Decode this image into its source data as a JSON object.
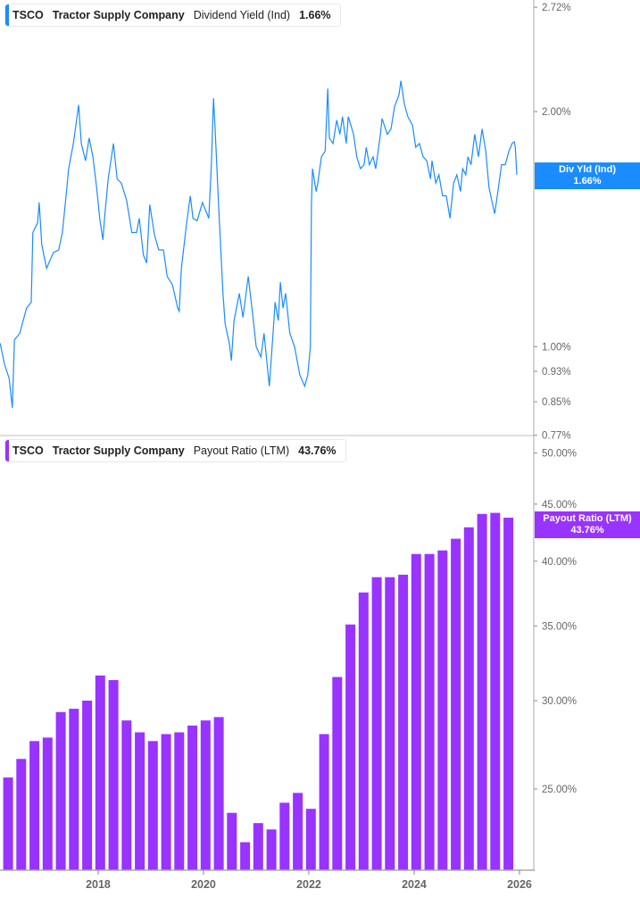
{
  "colors": {
    "yield": "#1a8cff",
    "payout": "#9933ff",
    "axis": "#999999",
    "label": "#666666"
  },
  "top_legend": {
    "ticker": "TSCO",
    "company": "Tractor Supply Company",
    "metric": "Dividend Yield (Ind)",
    "value": "1.66%"
  },
  "top_value_label": {
    "name": "Div Yld (Ind)",
    "value": "1.66%"
  },
  "bottom_legend": {
    "ticker": "TSCO",
    "company": "Tractor Supply Company",
    "metric": "Payout Ratio (LTM)",
    "value": "43.76%"
  },
  "bottom_value_label": {
    "name": "Payout Ratio (LTM)",
    "value": "43.76%"
  },
  "chart_data": [
    {
      "type": "line",
      "series": [
        {
          "name": "Dividend Yield (Ind)",
          "color": "#1a8cff"
        }
      ],
      "y_scale": "log",
      "y_ticks": [
        2.72,
        2.0,
        1.0,
        0.93,
        0.85,
        0.77
      ],
      "y_tick_labels": [
        "2.72%",
        "2.00%",
        "1.00%",
        "0.93%",
        "0.85%",
        "0.77%"
      ],
      "y_axis_position": "right",
      "x": [
        2016.14,
        2016.22,
        2016.31,
        2016.37,
        2016.41,
        2016.51,
        2016.64,
        2016.73,
        2016.76,
        2016.85,
        2016.88,
        2016.93,
        2017.02,
        2017.15,
        2017.25,
        2017.32,
        2017.39,
        2017.44,
        2017.53,
        2017.59,
        2017.63,
        2017.68,
        2017.76,
        2017.83,
        2017.9,
        2017.97,
        2018.03,
        2018.09,
        2018.12,
        2018.19,
        2018.29,
        2018.36,
        2018.44,
        2018.54,
        2018.64,
        2018.73,
        2018.78,
        2018.86,
        2018.92,
        2018.98,
        2019.07,
        2019.15,
        2019.24,
        2019.31,
        2019.41,
        2019.51,
        2019.54,
        2019.58,
        2019.68,
        2019.75,
        2019.8,
        2019.88,
        2019.98,
        2020.1,
        2020.15,
        2020.19,
        2020.22,
        2020.29,
        2020.37,
        2020.41,
        2020.49,
        2020.53,
        2020.58,
        2020.68,
        2020.75,
        2020.85,
        2020.92,
        2021.0,
        2021.09,
        2021.15,
        2021.25,
        2021.32,
        2021.36,
        2021.42,
        2021.46,
        2021.51,
        2021.56,
        2021.64,
        2021.73,
        2021.83,
        2021.92,
        2021.98,
        2022.03,
        2022.05,
        2022.07,
        2022.14,
        2022.17,
        2022.24,
        2022.31,
        2022.36,
        2022.39,
        2022.46,
        2022.53,
        2022.59,
        2022.64,
        2022.71,
        2022.75,
        2022.85,
        2022.91,
        2022.98,
        2023.05,
        2023.09,
        2023.15,
        2023.22,
        2023.27,
        2023.36,
        2023.39,
        2023.49,
        2023.56,
        2023.63,
        2023.71,
        2023.75,
        2023.81,
        2023.88,
        2023.97,
        2024.03,
        2024.1,
        2024.17,
        2024.24,
        2024.31,
        2024.34,
        2024.41,
        2024.47,
        2024.54,
        2024.61,
        2024.68,
        2024.75,
        2024.81,
        2024.88,
        2024.92,
        2024.98,
        2025.02,
        2025.08,
        2025.15,
        2025.22,
        2025.29,
        2025.36,
        2025.42,
        2025.49,
        2025.53,
        2025.59,
        2025.66,
        2025.73,
        2025.8,
        2025.86,
        2025.9,
        2025.92,
        2025.95
      ],
      "y": [
        1.01,
        0.95,
        0.91,
        0.835,
        1.02,
        1.04,
        1.12,
        1.14,
        1.4,
        1.44,
        1.53,
        1.35,
        1.26,
        1.32,
        1.33,
        1.4,
        1.56,
        1.69,
        1.82,
        1.95,
        2.04,
        1.82,
        1.73,
        1.85,
        1.75,
        1.6,
        1.46,
        1.37,
        1.46,
        1.64,
        1.82,
        1.64,
        1.62,
        1.54,
        1.4,
        1.4,
        1.46,
        1.31,
        1.28,
        1.52,
        1.39,
        1.33,
        1.33,
        1.23,
        1.2,
        1.12,
        1.11,
        1.26,
        1.44,
        1.56,
        1.46,
        1.45,
        1.53,
        1.46,
        1.71,
        2.08,
        1.9,
        1.5,
        1.17,
        1.07,
        1.01,
        0.96,
        1.08,
        1.17,
        1.09,
        1.23,
        1.12,
        1.0,
        0.97,
        1.04,
        0.89,
        1.04,
        1.14,
        1.08,
        1.21,
        1.12,
        1.17,
        1.04,
        1.0,
        0.92,
        0.89,
        0.92,
        1.0,
        1.52,
        1.69,
        1.58,
        1.62,
        1.75,
        1.78,
        2.14,
        1.85,
        1.82,
        1.95,
        1.87,
        1.97,
        1.82,
        1.97,
        1.87,
        1.75,
        1.69,
        1.71,
        1.8,
        1.71,
        1.75,
        1.69,
        1.87,
        1.96,
        1.87,
        1.9,
        2.03,
        2.1,
        2.19,
        2.05,
        1.97,
        1.92,
        1.8,
        1.82,
        1.75,
        1.73,
        1.64,
        1.73,
        1.62,
        1.66,
        1.56,
        1.56,
        1.46,
        1.62,
        1.66,
        1.58,
        1.69,
        1.66,
        1.75,
        1.71,
        1.87,
        1.75,
        1.9,
        1.78,
        1.6,
        1.52,
        1.48,
        1.58,
        1.71,
        1.71,
        1.78,
        1.82,
        1.83,
        1.8,
        1.66
      ]
    },
    {
      "type": "bar",
      "series": [
        {
          "name": "Payout Ratio (LTM)",
          "color": "#9933ff"
        }
      ],
      "y_scale": "log",
      "y_ticks": [
        50,
        45,
        40,
        35,
        30,
        25
      ],
      "y_tick_labels": [
        "50.00%",
        "45.00%",
        "40.00%",
        "35.00%",
        "30.00%",
        "25.00%"
      ],
      "y_axis_position": "right",
      "categories": [
        "2016-03",
        "2016-06",
        "2016-09",
        "2016-12",
        "2017-03",
        "2017-06",
        "2017-09",
        "2017-12",
        "2018-03",
        "2018-06",
        "2018-09",
        "2018-12",
        "2019-03",
        "2019-06",
        "2019-09",
        "2019-12",
        "2020-03",
        "2020-06",
        "2020-09",
        "2020-12",
        "2021-03",
        "2021-06",
        "2021-09",
        "2021-12",
        "2022-03",
        "2022-06",
        "2022-09",
        "2022-12",
        "2023-03",
        "2023-06",
        "2023-09",
        "2023-12",
        "2024-03",
        "2024-06",
        "2024-09",
        "2024-12",
        "2025-03",
        "2025-06",
        "2025-09"
      ],
      "values": [
        25.6,
        26.6,
        27.6,
        27.8,
        29.3,
        29.5,
        30.0,
        31.6,
        31.3,
        28.8,
        28.1,
        27.6,
        28.0,
        28.1,
        28.5,
        28.8,
        29.0,
        23.8,
        22.4,
        23.3,
        23.0,
        24.3,
        24.8,
        24.0,
        28.0,
        31.5,
        35.1,
        37.5,
        38.7,
        38.7,
        38.9,
        40.6,
        40.6,
        40.9,
        41.9,
        42.9,
        44.1,
        44.2,
        43.76
      ],
      "x_ticks": [
        "2018",
        "2020",
        "2022",
        "2024",
        "2026"
      ]
    }
  ]
}
